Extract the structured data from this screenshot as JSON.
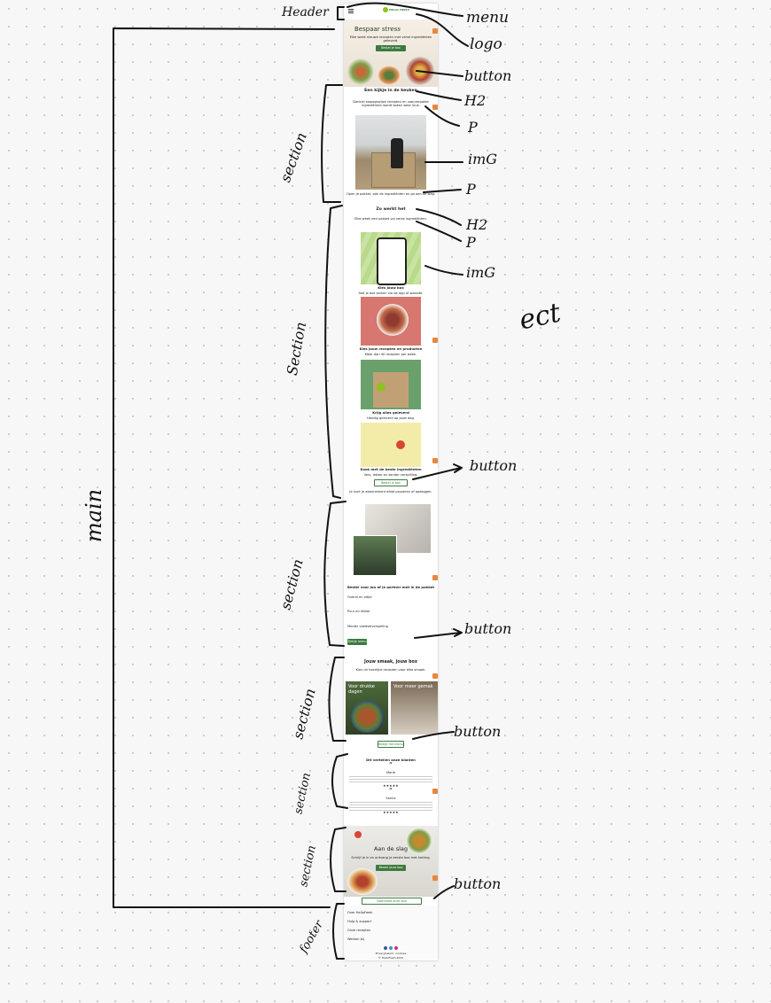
{
  "annotations": {
    "header": "Header",
    "menu": "menu",
    "logo": "logo",
    "button": "button",
    "h2": "H2",
    "p": "P",
    "img": "imG",
    "ect": "ect",
    "main": "main",
    "section": "section",
    "section_alt": "Section",
    "footer": "footer"
  },
  "page": {
    "logo": "HELLO FRESH",
    "hero_title_part1": "Bespaar",
    "hero_title_part2": "stress",
    "hero_text": "Elke week nieuwe recepten met verse ingrediënten geleverd.",
    "hero_button": "Bestel je box",
    "s1_title": "Een kijkje in de keuken",
    "s1_text": "Dankzij stapsgewijze recepten en voorverpakte ingrediënten wordt koken weer leuk.",
    "s1_caption": "Open je pakket, pak de ingrediënten en ga aan de slag.",
    "s2_title": "Zo werkt het",
    "s2_text": "Elke week een pakket vol verse ingrediënten.",
    "steps": [
      {
        "title": "Kies jouw box",
        "text": "Stel je box samen via de app of website."
      },
      {
        "title": "Kies jouw recepten en producten",
        "text": "Meer dan 40 recepten per week."
      },
      {
        "title": "Krijg alles geleverd",
        "text": "Handig geleverd op jouw dag."
      },
      {
        "title": "Kook met de beste ingrediënten",
        "text": "Vers, lekker en zonder verspilling."
      }
    ],
    "s2_button": "Bestel je box",
    "s2_note": "Je kunt je abonnement altijd pauzeren of opzeggen.",
    "s3_title": "Bestel voor jou of je partner met in de pakket",
    "s3_items": [
      "Overal en altijd",
      "Puur en lekker",
      "Minder voedselverspilling"
    ],
    "s3_button": "Bekijk menu",
    "s4_title": "Jouw smaak, jouw box",
    "s4_text": "Kies uit heerlijke recepten voor elke smaak.",
    "s4_card1": "Voor drukke dagen",
    "s4_card2": "Voor meer gemak",
    "s4_button": "Bekijk het menu",
    "s5_title": "Dit vertellen onze klanten",
    "s5_quote": "“",
    "s5_name1": "Marie",
    "s5_name2": "Sanne",
    "stars": "★★★★★",
    "s6_title": "Aan de slag",
    "s6_text": "Schrijf je in en ontvang je eerste box met korting.",
    "s6_button": "Bestel jouw box",
    "app_button": "Download onze app",
    "footer_links": [
      "Over HelloFresh",
      "Hulp & support",
      "Onze recepten",
      "Werken bij"
    ],
    "footer_legal": "Privacybeleid  ·  Cookies",
    "footer_copy": "© HelloFresh 2023"
  },
  "colors": {
    "brand_green": "#3d7a3f",
    "accent_orange": "#e8873e",
    "logo_green": "#91c11e"
  }
}
